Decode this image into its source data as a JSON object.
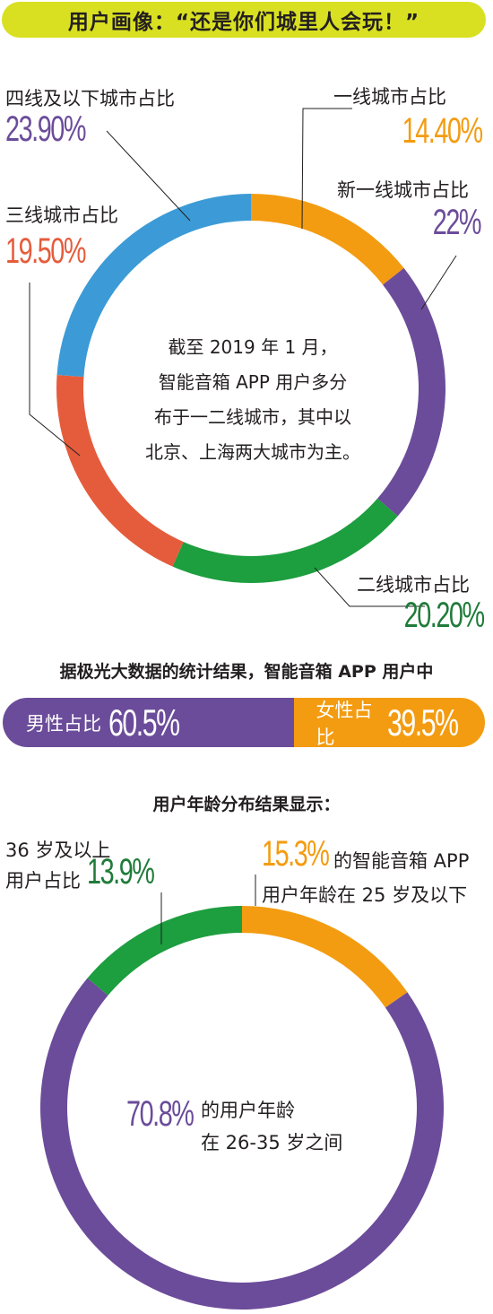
{
  "title": "用户画像：“还是你们城里人会玩！”",
  "colors": {
    "orange": "#f39c11",
    "purple": "#6b4c9a",
    "green": "#1d9e3f",
    "red": "#e55c3c",
    "blue": "#3c9bd6",
    "darkgreen": "#1f7b39",
    "title_bg": "#d9e021"
  },
  "city_chart": {
    "labels": {
      "tier1": "一线城市占比",
      "new_tier1": "新一线城市占比",
      "tier2": "二线城市占比",
      "tier3": "三线城市占比",
      "tier4": "四线及以下城市占比"
    },
    "values_text": {
      "tier1": "14.40%",
      "new_tier1": "22%",
      "tier2": "20.20%",
      "tier3": "19.50%",
      "tier4": "23.90%"
    },
    "center_lines": [
      "截至 2019 年 1 月，",
      "智能音箱 APP 用户多分",
      "布于一二线城市，其中以",
      "北京、上海两大城市为主。"
    ]
  },
  "gender": {
    "heading": "据极光大数据的统计结果，智能音箱 APP 用户中",
    "male_label": "男性占比",
    "male_value": "60.5%",
    "female_label": "女性占比",
    "female_value": "39.5%"
  },
  "age_chart": {
    "heading": "用户年龄分布结果显示：",
    "young_value": "15.3%",
    "young_line1": "的智能音箱 APP",
    "young_line2": "用户年龄在 25 岁及以下",
    "old_line1": "36 岁及以上",
    "old_line2": "用户占比",
    "old_value": "13.9%",
    "mid_value": "70.8%",
    "mid_line1": "的用户年龄",
    "mid_line2": "在 26-35 岁之间"
  },
  "chart_data": [
    {
      "type": "pie",
      "categories": [
        "一线城市占比",
        "新一线城市占比",
        "二线城市占比",
        "三线城市占比",
        "四线及以下城市占比"
      ],
      "values": [
        14.4,
        22,
        20.2,
        19.5,
        23.9
      ],
      "colors": [
        "#f39c11",
        "#6b4c9a",
        "#1d9e3f",
        "#e55c3c",
        "#3c9bd6"
      ]
    },
    {
      "type": "bar",
      "categories": [
        "男性占比",
        "女性占比"
      ],
      "values": [
        60.5,
        39.5
      ],
      "colors": [
        "#6b4c9a",
        "#f39c11"
      ]
    },
    {
      "type": "pie",
      "categories": [
        "25 岁及以下",
        "26-35 岁",
        "36 岁及以上"
      ],
      "values": [
        15.3,
        70.8,
        13.9
      ],
      "colors": [
        "#f39c11",
        "#6b4c9a",
        "#1d9e3f"
      ]
    }
  ]
}
